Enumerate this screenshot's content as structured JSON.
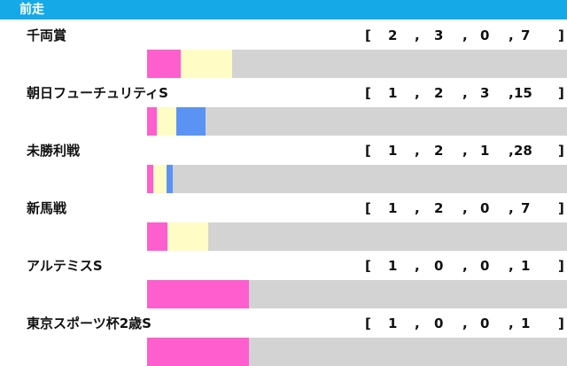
{
  "header": {
    "title": "前走"
  },
  "colors": {
    "first": "#ff5ecf",
    "second": "#fffcc5",
    "third": "#5b93f5",
    "other": "#d3d3d3",
    "header_bg": "#16a9e8"
  },
  "chart_data": {
    "type": "bar",
    "stacked": true,
    "orientation": "horizontal",
    "categories": [
      "千両賞",
      "朝日フューチュリティS",
      "未勝利戦",
      "新馬戦",
      "アルテミスS",
      "東京スポーツ杯2歳S"
    ],
    "series": [
      {
        "values": [
          2,
          1,
          1,
          1,
          1,
          1
        ]
      },
      {
        "values": [
          3,
          2,
          2,
          2,
          0,
          0
        ]
      },
      {
        "values": [
          0,
          3,
          1,
          0,
          0,
          0
        ]
      },
      {
        "values": [
          7,
          15,
          28,
          7,
          1,
          1
        ]
      }
    ]
  },
  "rows": [
    {
      "name": "千両賞",
      "open": "[",
      "c1": "2",
      "s1": ",",
      "c2": "3",
      "s2": ",",
      "c3": "0",
      "s3": ",",
      "c4": "7",
      "close": "]"
    },
    {
      "name": "朝日フューチュリティS",
      "open": "[",
      "c1": "1",
      "s1": ",",
      "c2": "2",
      "s2": ",",
      "c3": "3",
      "s3": ",",
      "c4": "15",
      "close": "]"
    },
    {
      "name": "未勝利戦",
      "open": "[",
      "c1": "1",
      "s1": ",",
      "c2": "2",
      "s2": ",",
      "c3": "1",
      "s3": ",",
      "c4": "28",
      "close": "]"
    },
    {
      "name": "新馬戦",
      "open": "[",
      "c1": "1",
      "s1": ",",
      "c2": "2",
      "s2": ",",
      "c3": "0",
      "s3": ",",
      "c4": "7",
      "close": "]"
    },
    {
      "name": "アルテミスS",
      "open": "[",
      "c1": "1",
      "s1": ",",
      "c2": "0",
      "s2": ",",
      "c3": "0",
      "s3": ",",
      "c4": "1",
      "close": "]"
    },
    {
      "name": "東京スポーツ杯2歳S",
      "open": "[",
      "c1": "1",
      "s1": ",",
      "c2": "0",
      "s2": ",",
      "c3": "0",
      "s3": ",",
      "c4": "1",
      "close": "]"
    }
  ]
}
